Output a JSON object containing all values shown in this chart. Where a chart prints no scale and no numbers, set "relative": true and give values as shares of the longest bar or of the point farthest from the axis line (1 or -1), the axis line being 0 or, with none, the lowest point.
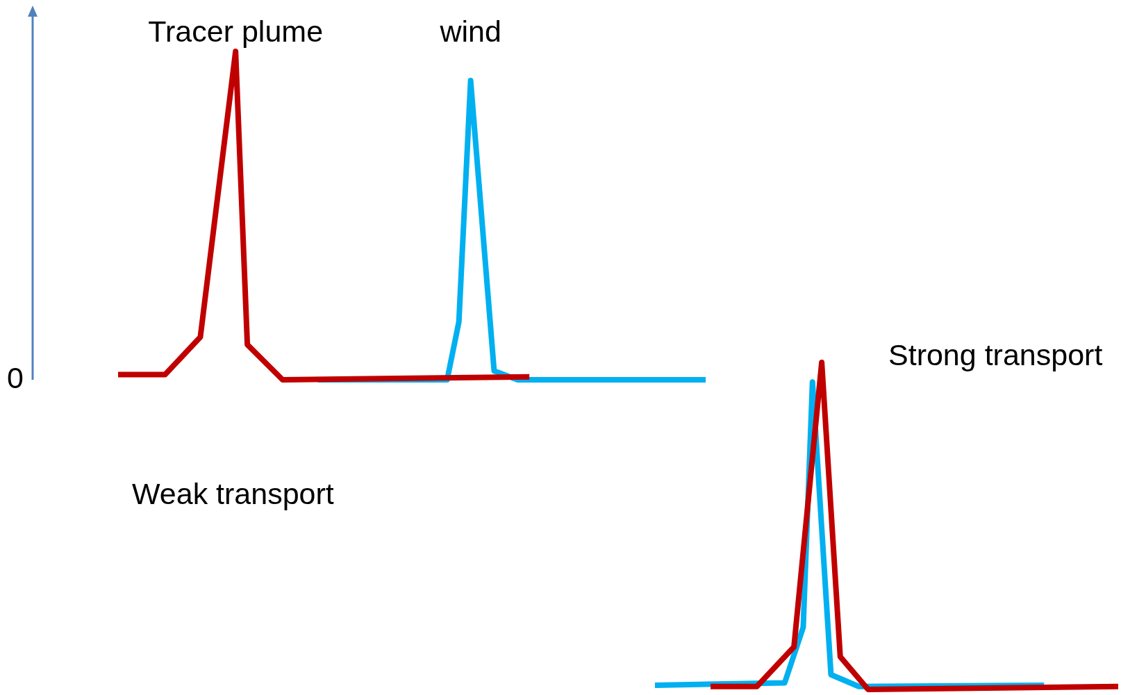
{
  "chart_data": [
    {
      "type": "line",
      "title": "Weak transport",
      "relative": true,
      "legend": false,
      "marker": "none",
      "line_style": "solid",
      "annotations": [
        "0"
      ],
      "categories": [
        null,
        null,
        null,
        null,
        null,
        null,
        null,
        null,
        null,
        null,
        null,
        null,
        null,
        null,
        null,
        null,
        null,
        null,
        null,
        null,
        null,
        null,
        null,
        null,
        null,
        null,
        null,
        null,
        null,
        null,
        null,
        null,
        null,
        null,
        null,
        null,
        null,
        null,
        null,
        null,
        null,
        null,
        null,
        null,
        null,
        null,
        null,
        null,
        null,
        null,
        null
      ],
      "series": [
        {
          "name": "Tracer plume",
          "color": "#c00000",
          "values": [
            0.016,
            null,
            null,
            null,
            0.016,
            null,
            null,
            0.13,
            null,
            null,
            1,
            0.107,
            null,
            null,
            0,
            null,
            null,
            null,
            null,
            null,
            null,
            null,
            null,
            null,
            null,
            null,
            null,
            null,
            null,
            null,
            null,
            null,
            null,
            null,
            null,
            0.009,
            null,
            null,
            null,
            null,
            null,
            null,
            null,
            null,
            null,
            null,
            null,
            null,
            null,
            null,
            null
          ]
        },
        {
          "name": "wind",
          "color": "#00b0f0",
          "values": [
            null,
            null,
            null,
            null,
            null,
            null,
            null,
            null,
            null,
            null,
            null,
            null,
            null,
            null,
            null,
            null,
            null,
            0,
            null,
            null,
            null,
            null,
            null,
            null,
            null,
            null,
            null,
            null,
            0,
            0.176,
            0.911,
            null,
            0.027,
            null,
            0,
            null,
            null,
            null,
            null,
            null,
            null,
            null,
            null,
            null,
            null,
            null,
            null,
            null,
            null,
            null,
            0
          ]
        }
      ]
    },
    {
      "type": "line",
      "title": "Strong transport",
      "relative": true,
      "legend": false,
      "marker": "none",
      "line_style": "solid",
      "categories": [
        null,
        null,
        null,
        null,
        null,
        null,
        null,
        null,
        null,
        null,
        null,
        null,
        null,
        null,
        null,
        null,
        null,
        null,
        null,
        null,
        null,
        null,
        null,
        null,
        null,
        null,
        null,
        null,
        null,
        null,
        null,
        null,
        null,
        null,
        null,
        null,
        null,
        null,
        null,
        null,
        null,
        null,
        null,
        null,
        null,
        null,
        null,
        null,
        null,
        null,
        null
      ],
      "series": [
        {
          "color": "#c00000",
          "values": [
            null,
            null,
            null,
            null,
            null,
            null,
            0.009,
            null,
            null,
            null,
            null,
            0.009,
            null,
            null,
            null,
            0.13,
            null,
            null,
            1,
            null,
            0.1,
            null,
            null,
            0,
            null,
            null,
            null,
            null,
            null,
            null,
            null,
            null,
            null,
            null,
            null,
            null,
            null,
            null,
            null,
            null,
            null,
            null,
            null,
            null,
            null,
            null,
            null,
            null,
            null,
            null,
            0.009
          ]
        },
        {
          "color": "#00b0f0",
          "values": [
            0.013,
            null,
            null,
            null,
            null,
            null,
            null,
            null,
            null,
            null,
            null,
            null,
            null,
            null,
            0.02,
            null,
            0.19,
            0.94,
            null,
            0.045,
            null,
            null,
            0.009,
            null,
            null,
            null,
            null,
            null,
            null,
            null,
            null,
            null,
            null,
            null,
            null,
            null,
            null,
            null,
            null,
            null,
            null,
            null,
            0.013,
            null,
            null,
            null,
            null,
            null,
            null,
            null,
            null
          ]
        }
      ]
    }
  ]
}
